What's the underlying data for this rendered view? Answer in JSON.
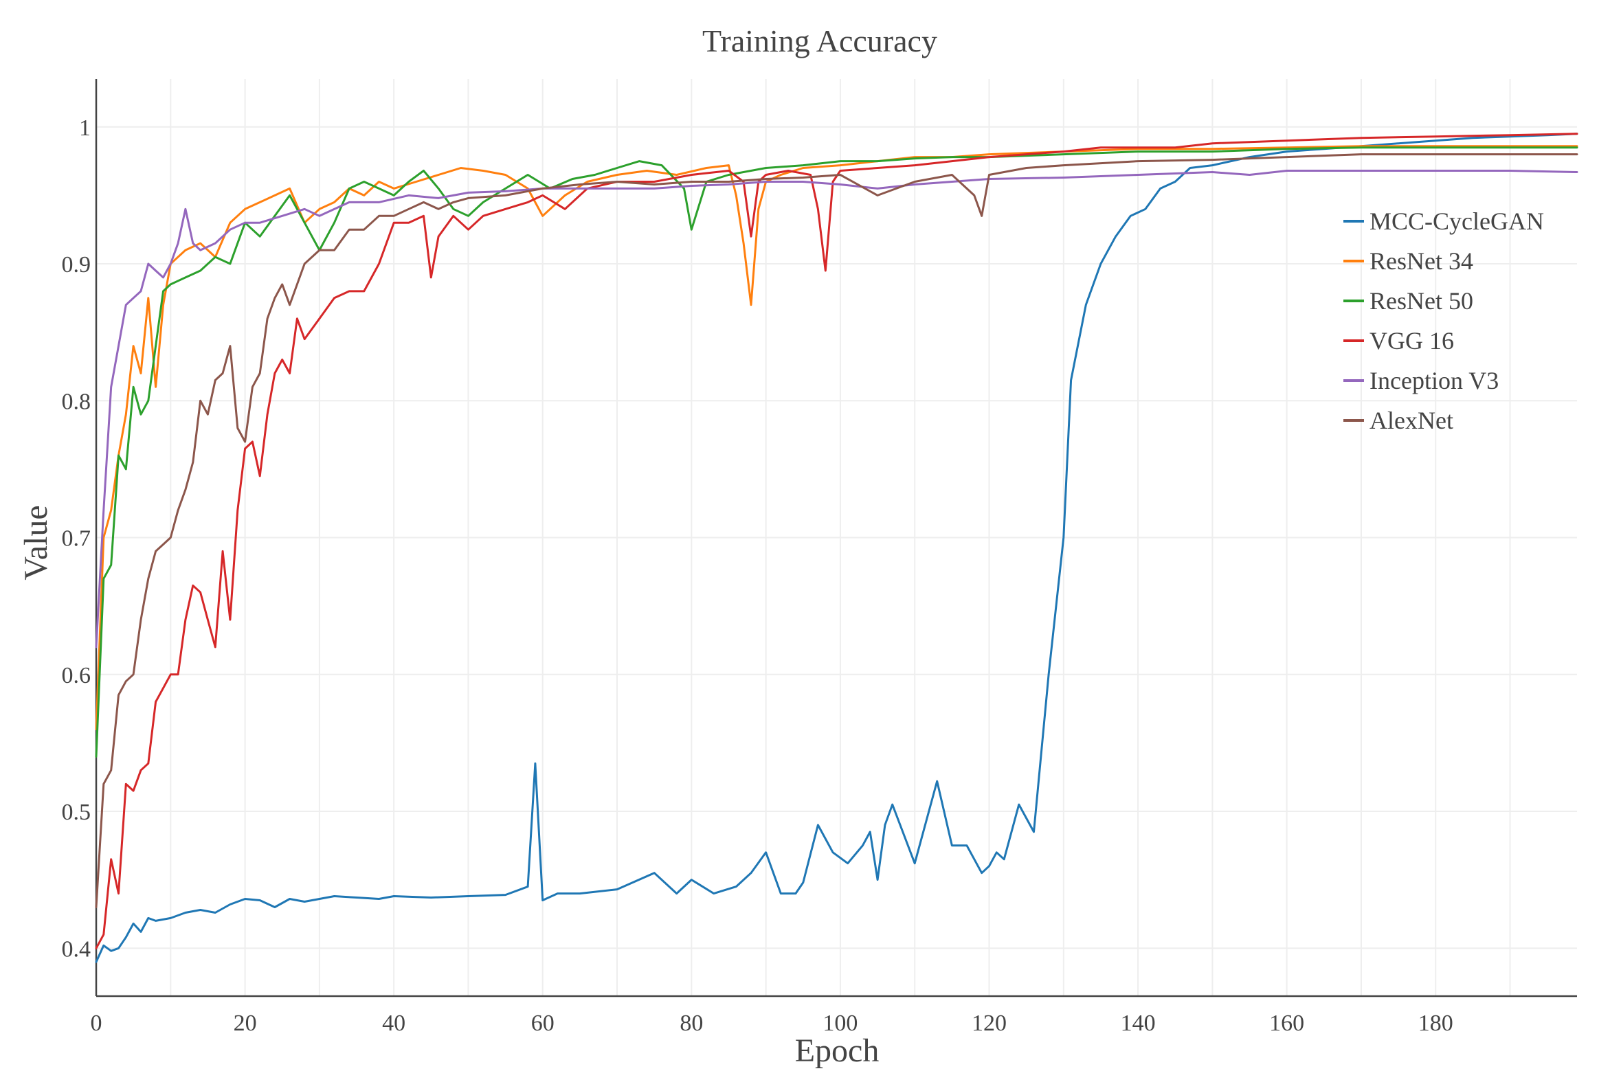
{
  "chart_data": {
    "type": "line",
    "title": "Training Accuracy",
    "xlabel": "Epoch",
    "ylabel": "Value",
    "xlim": [
      0,
      199
    ],
    "ylim": [
      0.365,
      1.03
    ],
    "xticks": [
      0,
      20,
      40,
      60,
      80,
      100,
      120,
      140,
      160,
      180
    ],
    "xtick_labels": [
      "0",
      "20",
      "40",
      "60",
      "80",
      "100",
      "120",
      "140",
      "160",
      "180"
    ],
    "yticks": [
      0.4,
      0.5,
      0.6,
      0.7,
      0.8,
      0.9,
      1.0
    ],
    "ytick_labels": [
      "0.4",
      "0.5",
      "0.6",
      "0.7",
      "0.8",
      "0.9",
      "1"
    ],
    "grid": true,
    "legend_position": "top-right",
    "series": [
      {
        "name": "MCC-CycleGAN",
        "color": "#1f77b4",
        "x": [
          0,
          1,
          2,
          3,
          4,
          5,
          6,
          7,
          8,
          10,
          12,
          14,
          16,
          18,
          20,
          22,
          24,
          26,
          28,
          30,
          32,
          35,
          38,
          40,
          45,
          50,
          55,
          58,
          59,
          60,
          62,
          65,
          70,
          75,
          78,
          80,
          83,
          86,
          88,
          90,
          92,
          94,
          95,
          97,
          99,
          101,
          103,
          104,
          105,
          106,
          107,
          110,
          113,
          115,
          117,
          119,
          120,
          121,
          122,
          124,
          126,
          128,
          130,
          131,
          133,
          135,
          137,
          139,
          141,
          143,
          145,
          147,
          150,
          155,
          160,
          165,
          170,
          175,
          180,
          185,
          190,
          195,
          199
        ],
        "y": [
          0.39,
          0.402,
          0.398,
          0.4,
          0.408,
          0.418,
          0.412,
          0.422,
          0.42,
          0.422,
          0.426,
          0.428,
          0.426,
          0.432,
          0.436,
          0.435,
          0.43,
          0.436,
          0.434,
          0.436,
          0.438,
          0.437,
          0.436,
          0.438,
          0.437,
          0.438,
          0.439,
          0.445,
          0.535,
          0.435,
          0.44,
          0.44,
          0.443,
          0.455,
          0.44,
          0.45,
          0.44,
          0.445,
          0.455,
          0.47,
          0.44,
          0.44,
          0.448,
          0.49,
          0.47,
          0.462,
          0.475,
          0.485,
          0.45,
          0.49,
          0.505,
          0.462,
          0.522,
          0.475,
          0.475,
          0.455,
          0.46,
          0.47,
          0.465,
          0.505,
          0.485,
          0.6,
          0.7,
          0.815,
          0.87,
          0.9,
          0.92,
          0.935,
          0.94,
          0.955,
          0.96,
          0.97,
          0.972,
          0.978,
          0.982,
          0.984,
          0.986,
          0.988,
          0.99,
          0.992,
          0.993,
          0.994,
          0.995
        ]
      },
      {
        "name": "ResNet 34",
        "color": "#ff7f0e",
        "x": [
          0,
          1,
          2,
          3,
          4,
          5,
          6,
          7,
          8,
          9,
          10,
          12,
          14,
          16,
          18,
          20,
          22,
          24,
          26,
          28,
          30,
          32,
          34,
          36,
          38,
          40,
          43,
          46,
          49,
          52,
          55,
          58,
          60,
          63,
          66,
          70,
          74,
          78,
          82,
          85,
          86,
          87,
          88,
          89,
          90,
          92,
          95,
          100,
          105,
          110,
          115,
          120,
          130,
          140,
          150,
          160,
          170,
          180,
          190,
          199
        ],
        "y": [
          0.56,
          0.7,
          0.72,
          0.76,
          0.79,
          0.84,
          0.82,
          0.875,
          0.81,
          0.87,
          0.9,
          0.91,
          0.915,
          0.905,
          0.93,
          0.94,
          0.945,
          0.95,
          0.955,
          0.93,
          0.94,
          0.945,
          0.955,
          0.95,
          0.96,
          0.955,
          0.96,
          0.965,
          0.97,
          0.968,
          0.965,
          0.955,
          0.935,
          0.95,
          0.96,
          0.965,
          0.968,
          0.965,
          0.97,
          0.972,
          0.95,
          0.915,
          0.87,
          0.94,
          0.96,
          0.965,
          0.97,
          0.972,
          0.975,
          0.978,
          0.978,
          0.98,
          0.982,
          0.984,
          0.984,
          0.985,
          0.986,
          0.986,
          0.986,
          0.986
        ]
      },
      {
        "name": "ResNet 50",
        "color": "#2ca02c",
        "x": [
          0,
          1,
          2,
          3,
          4,
          5,
          6,
          7,
          8,
          9,
          10,
          12,
          14,
          16,
          18,
          20,
          22,
          24,
          26,
          28,
          30,
          32,
          34,
          36,
          38,
          40,
          42,
          44,
          46,
          48,
          50,
          52,
          55,
          58,
          61,
          64,
          67,
          70,
          73,
          76,
          79,
          80,
          82,
          85,
          90,
          95,
          100,
          105,
          110,
          115,
          120,
          130,
          140,
          150,
          160,
          170,
          180,
          190,
          199
        ],
        "y": [
          0.54,
          0.67,
          0.68,
          0.76,
          0.75,
          0.81,
          0.79,
          0.8,
          0.84,
          0.88,
          0.885,
          0.89,
          0.895,
          0.905,
          0.9,
          0.93,
          0.92,
          0.935,
          0.95,
          0.93,
          0.91,
          0.93,
          0.955,
          0.96,
          0.955,
          0.95,
          0.96,
          0.968,
          0.955,
          0.94,
          0.935,
          0.945,
          0.955,
          0.965,
          0.955,
          0.962,
          0.965,
          0.97,
          0.975,
          0.972,
          0.955,
          0.925,
          0.96,
          0.965,
          0.97,
          0.972,
          0.975,
          0.975,
          0.977,
          0.978,
          0.978,
          0.98,
          0.982,
          0.982,
          0.984,
          0.985,
          0.985,
          0.985,
          0.985
        ]
      },
      {
        "name": "VGG 16",
        "color": "#d62728",
        "x": [
          0,
          1,
          2,
          3,
          4,
          5,
          6,
          7,
          8,
          9,
          10,
          11,
          12,
          13,
          14,
          15,
          16,
          17,
          18,
          19,
          20,
          21,
          22,
          23,
          24,
          25,
          26,
          27,
          28,
          30,
          32,
          34,
          36,
          38,
          40,
          42,
          44,
          45,
          46,
          48,
          50,
          52,
          55,
          58,
          60,
          63,
          66,
          70,
          75,
          80,
          85,
          87,
          88,
          89,
          90,
          93,
          96,
          97,
          98,
          99,
          100,
          105,
          110,
          115,
          120,
          125,
          130,
          135,
          140,
          145,
          150,
          160,
          170,
          180,
          190,
          199
        ],
        "y": [
          0.4,
          0.41,
          0.465,
          0.44,
          0.52,
          0.515,
          0.53,
          0.535,
          0.58,
          0.59,
          0.6,
          0.6,
          0.64,
          0.665,
          0.66,
          0.64,
          0.62,
          0.69,
          0.64,
          0.72,
          0.765,
          0.77,
          0.745,
          0.79,
          0.82,
          0.83,
          0.82,
          0.86,
          0.845,
          0.86,
          0.875,
          0.88,
          0.88,
          0.9,
          0.93,
          0.93,
          0.935,
          0.89,
          0.92,
          0.935,
          0.925,
          0.935,
          0.94,
          0.945,
          0.95,
          0.94,
          0.955,
          0.96,
          0.96,
          0.965,
          0.968,
          0.96,
          0.92,
          0.96,
          0.965,
          0.968,
          0.965,
          0.94,
          0.895,
          0.96,
          0.968,
          0.97,
          0.972,
          0.975,
          0.978,
          0.98,
          0.982,
          0.985,
          0.985,
          0.985,
          0.988,
          0.99,
          0.992,
          0.993,
          0.994,
          0.995
        ]
      },
      {
        "name": "Inception V3",
        "color": "#9467bd",
        "x": [
          0,
          1,
          2,
          3,
          4,
          5,
          6,
          7,
          8,
          9,
          10,
          11,
          12,
          13,
          14,
          16,
          18,
          20,
          22,
          25,
          28,
          30,
          34,
          38,
          42,
          46,
          50,
          55,
          60,
          65,
          70,
          75,
          80,
          85,
          90,
          95,
          100,
          105,
          110,
          115,
          120,
          130,
          140,
          150,
          155,
          160,
          170,
          180,
          190,
          199
        ],
        "y": [
          0.62,
          0.72,
          0.81,
          0.84,
          0.87,
          0.875,
          0.88,
          0.9,
          0.895,
          0.89,
          0.9,
          0.915,
          0.94,
          0.915,
          0.91,
          0.915,
          0.925,
          0.93,
          0.93,
          0.935,
          0.94,
          0.935,
          0.945,
          0.945,
          0.95,
          0.948,
          0.952,
          0.953,
          0.955,
          0.955,
          0.955,
          0.955,
          0.957,
          0.958,
          0.96,
          0.96,
          0.958,
          0.955,
          0.958,
          0.96,
          0.962,
          0.963,
          0.965,
          0.967,
          0.965,
          0.968,
          0.968,
          0.968,
          0.968,
          0.967
        ]
      },
      {
        "name": "AlexNet",
        "color": "#8c564b",
        "x": [
          0,
          1,
          2,
          3,
          4,
          5,
          6,
          7,
          8,
          9,
          10,
          11,
          12,
          13,
          14,
          15,
          16,
          17,
          18,
          19,
          20,
          21,
          22,
          23,
          24,
          25,
          26,
          27,
          28,
          30,
          32,
          34,
          36,
          38,
          40,
          42,
          44,
          46,
          48,
          50,
          55,
          60,
          65,
          70,
          75,
          80,
          85,
          90,
          95,
          100,
          105,
          110,
          115,
          118,
          119,
          120,
          125,
          130,
          140,
          150,
          160,
          170,
          180,
          190,
          199
        ],
        "y": [
          0.43,
          0.52,
          0.53,
          0.585,
          0.595,
          0.6,
          0.64,
          0.67,
          0.69,
          0.695,
          0.7,
          0.72,
          0.735,
          0.755,
          0.8,
          0.79,
          0.815,
          0.82,
          0.84,
          0.78,
          0.77,
          0.81,
          0.82,
          0.86,
          0.875,
          0.885,
          0.87,
          0.885,
          0.9,
          0.91,
          0.91,
          0.925,
          0.925,
          0.935,
          0.935,
          0.94,
          0.945,
          0.94,
          0.945,
          0.948,
          0.95,
          0.955,
          0.958,
          0.96,
          0.958,
          0.96,
          0.96,
          0.962,
          0.963,
          0.965,
          0.95,
          0.96,
          0.965,
          0.95,
          0.935,
          0.965,
          0.97,
          0.972,
          0.975,
          0.976,
          0.978,
          0.98,
          0.98,
          0.98,
          0.98
        ]
      }
    ]
  }
}
